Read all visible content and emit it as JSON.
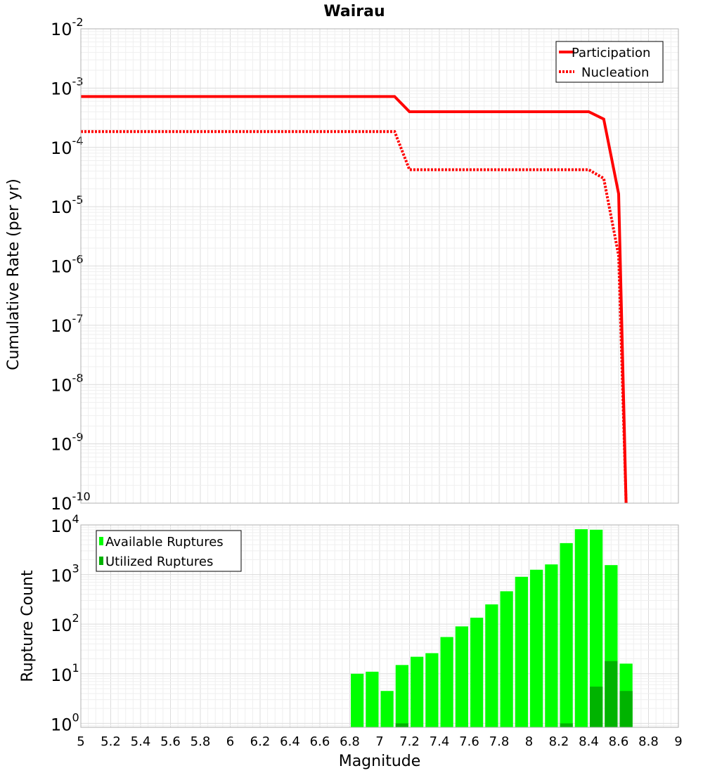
{
  "chart_data": [
    {
      "type": "line",
      "title": "Wairau",
      "ylabel": "Cumulative Rate (per yr)",
      "xlabel": "",
      "xlim": [
        5,
        9
      ],
      "ylim_log10": [
        -10,
        -2
      ],
      "y_ticks": [
        {
          "base": "10",
          "exp": "-2"
        },
        {
          "base": "10",
          "exp": "-3"
        },
        {
          "base": "10",
          "exp": "-4"
        },
        {
          "base": "10",
          "exp": "-5"
        },
        {
          "base": "10",
          "exp": "-6"
        },
        {
          "base": "10",
          "exp": "-7"
        },
        {
          "base": "10",
          "exp": "-8"
        },
        {
          "base": "10",
          "exp": "-9"
        },
        {
          "base": "10",
          "exp": "-10"
        }
      ],
      "legend": {
        "position": "top-right"
      },
      "series": [
        {
          "name": "Participation",
          "color": "#ff0000",
          "style": "solid",
          "points": [
            [
              5.0,
              0.00072
            ],
            [
              7.1,
              0.00072
            ],
            [
              7.2,
              0.0004
            ],
            [
              8.4,
              0.0004
            ],
            [
              8.5,
              0.0003
            ],
            [
              8.6,
              1.65e-05
            ],
            [
              8.65,
              1e-10
            ]
          ]
        },
        {
          "name": "Nucleation",
          "color": "#ff0000",
          "style": "dotted",
          "points": [
            [
              5.0,
              0.000185
            ],
            [
              7.1,
              0.000185
            ],
            [
              7.2,
              4.2e-05
            ],
            [
              8.4,
              4.2e-05
            ],
            [
              8.5,
              3e-05
            ],
            [
              8.6,
              1.5e-06
            ],
            [
              8.65,
              1e-10
            ]
          ]
        }
      ]
    },
    {
      "type": "bar",
      "title": "",
      "ylabel": "Rupture Count",
      "xlabel": "Magnitude",
      "xlim": [
        5,
        9
      ],
      "ylim_log10": [
        -0.08,
        4
      ],
      "x_ticks": [
        "5",
        "5.2",
        "5.4",
        "5.6",
        "5.8",
        "6",
        "6.2",
        "6.4",
        "6.6",
        "6.8",
        "7",
        "7.2",
        "7.4",
        "7.6",
        "7.8",
        "8",
        "8.2",
        "8.4",
        "8.6",
        "8.8",
        "9"
      ],
      "y_ticks": [
        {
          "base": "10",
          "exp": "0"
        },
        {
          "base": "10",
          "exp": "1"
        },
        {
          "base": "10",
          "exp": "2"
        },
        {
          "base": "10",
          "exp": "3"
        },
        {
          "base": "10",
          "exp": "4"
        }
      ],
      "legend": {
        "position": "top-left"
      },
      "bin_width": 0.1,
      "series": [
        {
          "name": "Available Ruptures",
          "color": "#00ff00",
          "values": [
            [
              6.85,
              10
            ],
            [
              6.95,
              11
            ],
            [
              7.05,
              4.5
            ],
            [
              7.15,
              15
            ],
            [
              7.25,
              22
            ],
            [
              7.35,
              26
            ],
            [
              7.45,
              55
            ],
            [
              7.55,
              90
            ],
            [
              7.65,
              135
            ],
            [
              7.75,
              250
            ],
            [
              7.85,
              460
            ],
            [
              7.95,
              900
            ],
            [
              8.05,
              1250
            ],
            [
              8.15,
              1600
            ],
            [
              8.25,
              4300
            ],
            [
              8.35,
              8200
            ],
            [
              8.45,
              8000
            ],
            [
              8.55,
              1550
            ],
            [
              8.65,
              16
            ]
          ]
        },
        {
          "name": "Utilized Ruptures",
          "color": "#00b300",
          "values": [
            [
              7.15,
              1
            ],
            [
              8.25,
              1
            ],
            [
              8.45,
              5.5
            ],
            [
              8.55,
              18
            ],
            [
              8.65,
              4.5
            ]
          ]
        }
      ]
    }
  ]
}
